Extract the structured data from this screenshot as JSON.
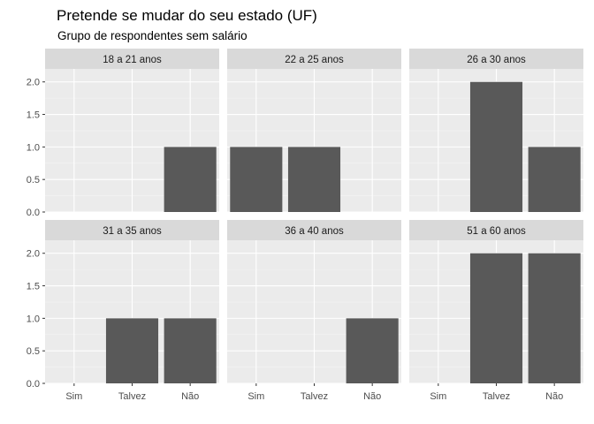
{
  "chart_data": {
    "type": "bar",
    "title": "Pretende se mudar do seu estado (UF)",
    "subtitle": "Grupo de respondentes sem salário",
    "xlabel": "",
    "ylabel": "",
    "categories": [
      "Sim",
      "Talvez",
      "Não"
    ],
    "y_ticks": [
      "0.0",
      "0.5",
      "1.0",
      "1.5",
      "2.0"
    ],
    "ylim": [
      0,
      2.2
    ],
    "grid": true,
    "bar_color": "#595959",
    "panel_background": "#ebebeb",
    "strip_background": "#d9d9d9",
    "facets": [
      {
        "label": "18 a 21 anos",
        "values": [
          0,
          0,
          1
        ]
      },
      {
        "label": "22 a 25 anos",
        "values": [
          1,
          1,
          0
        ]
      },
      {
        "label": "26 a 30 anos",
        "values": [
          0,
          2,
          1
        ]
      },
      {
        "label": "31 a 35 anos",
        "values": [
          0,
          1,
          1
        ]
      },
      {
        "label": "36 a 40 anos",
        "values": [
          0,
          0,
          1
        ]
      },
      {
        "label": "51 a 60 anos",
        "values": [
          0,
          2,
          2
        ]
      }
    ]
  }
}
